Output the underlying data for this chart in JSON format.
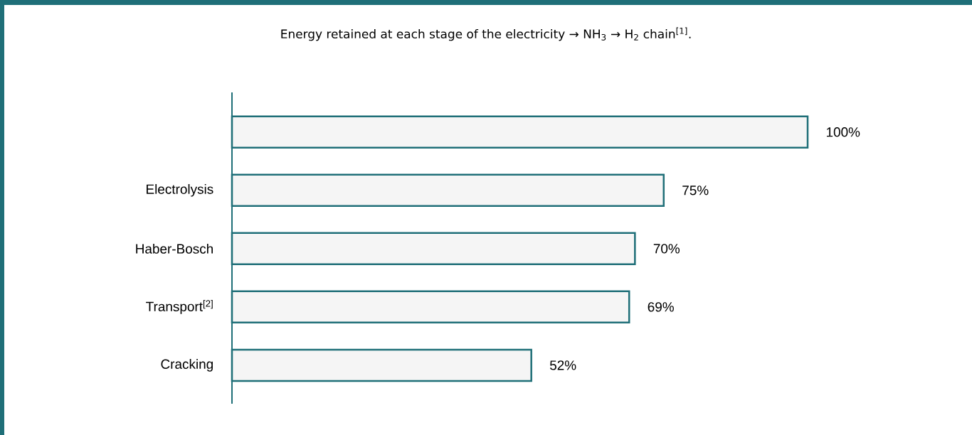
{
  "chart_data": {
    "type": "bar",
    "orientation": "horizontal",
    "title": "Energy retained at each stage of the electricity → NH$_{3}$ → H$_{2}$ chain$^{[1]}$.",
    "categories": [
      null,
      "Electrolysis",
      "Haber-Bosch",
      "Transport$^{[2]}$",
      "Cracking"
    ],
    "values": [
      100,
      75,
      70,
      69,
      52
    ],
    "value_labels": [
      "100%",
      "75%",
      "70%",
      "69%",
      "52%"
    ],
    "color": "#1f6f78",
    "tick_labels": "y"
  }
}
